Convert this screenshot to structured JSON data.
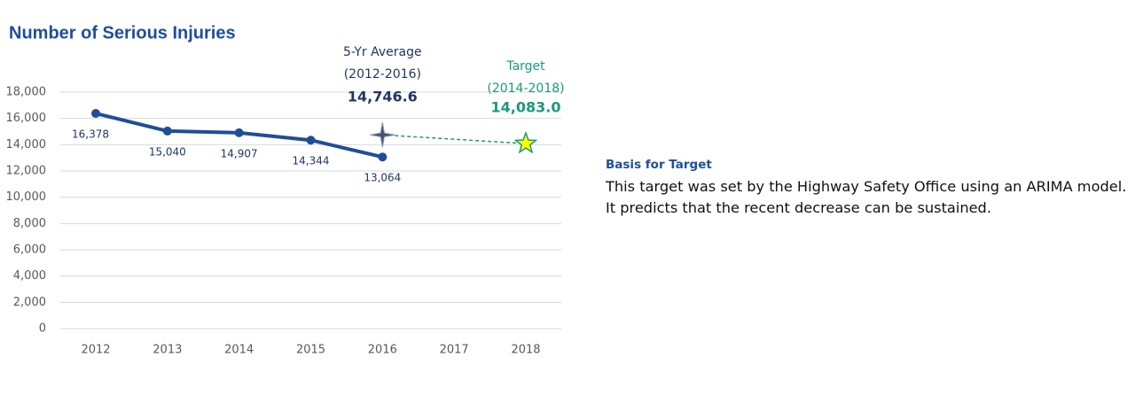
{
  "chart_data": {
    "type": "line",
    "title": "Number of Serious Injuries",
    "categories": [
      "2012",
      "2013",
      "2014",
      "2015",
      "2016",
      "2017",
      "2018"
    ],
    "series": [
      {
        "name": "Serious Injuries",
        "color": "#1f4e99",
        "values": [
          16378,
          15040,
          14907,
          14344,
          13064,
          null,
          null
        ],
        "value_labels": [
          "16,378",
          "15,040",
          "14,907",
          "14,344",
          "13,064",
          null,
          null
        ]
      }
    ],
    "ylim": [
      0,
      18000
    ],
    "yticks": [
      0,
      {
        "value": 2000,
        "label": "2,000"
      },
      {
        "value": 4000,
        "label": "4,000"
      },
      {
        "value": 6000,
        "label": "6,000"
      },
      {
        "value": 8000,
        "label": "8,000"
      },
      {
        "value": 10000,
        "label": "10,000"
      },
      {
        "value": 12000,
        "label": "12,000"
      },
      {
        "value": 14000,
        "label": "14,000"
      },
      {
        "value": 16000,
        "label": "16,000"
      },
      {
        "value": 18000,
        "label": "18,000"
      }
    ],
    "grid": true,
    "average": {
      "label": "5-Yr Average",
      "period": "(2012-2016)",
      "category": "2016",
      "value": 14746.6,
      "value_label": "14,746.6",
      "color": "#1f3864"
    },
    "target": {
      "label": "Target",
      "period": "(2014-2018)",
      "category": "2018",
      "value": 14083.0,
      "value_label": "14,083.0",
      "color": "#1a9a7a"
    }
  },
  "side_note": {
    "heading": "Basis for Target",
    "text": "This target was set by the Highway Safety Office using an ARIMA model.  It predicts that the recent decrease can be sustained."
  }
}
